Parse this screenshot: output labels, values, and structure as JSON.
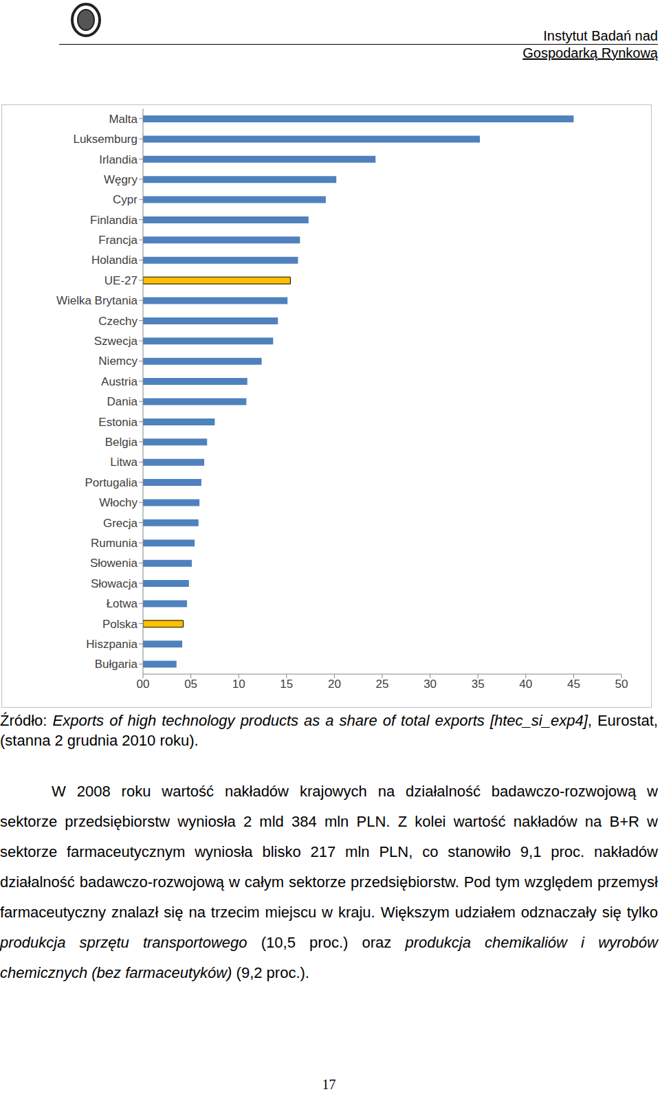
{
  "header": {
    "lines": [
      "Instytut Badań nad",
      "Gospodarką Rynkową"
    ]
  },
  "chart_data": {
    "type": "bar",
    "orientation": "horizontal",
    "categories": [
      "Malta",
      "Luksemburg",
      "Irlandia",
      "Węgry",
      "Cypr",
      "Finlandia",
      "Francja",
      "Holandia",
      "UE-27",
      "Wielka Brytania",
      "Czechy",
      "Szwecja",
      "Niemcy",
      "Austria",
      "Dania",
      "Estonia",
      "Belgia",
      "Litwa",
      "Portugalia",
      "Włochy",
      "Grecja",
      "Rumunia",
      "Słowenia",
      "Słowacja",
      "Łotwa",
      "Polska",
      "Hiszpania",
      "Bułgaria"
    ],
    "values": [
      45.0,
      35.2,
      24.3,
      20.2,
      19.1,
      17.3,
      16.4,
      16.2,
      15.4,
      15.1,
      14.1,
      13.6,
      12.4,
      10.9,
      10.8,
      7.5,
      6.7,
      6.4,
      6.1,
      5.9,
      5.8,
      5.4,
      5.1,
      4.8,
      4.6,
      4.2,
      4.1,
      3.5
    ],
    "color": "#4f81bd",
    "colors": [
      "#4f81bd",
      "#4f81bd",
      "#4f81bd",
      "#4f81bd",
      "#4f81bd",
      "#4f81bd",
      "#4f81bd",
      "#4f81bd",
      "#ffc000",
      "#4f81bd",
      "#4f81bd",
      "#4f81bd",
      "#4f81bd",
      "#4f81bd",
      "#4f81bd",
      "#4f81bd",
      "#4f81bd",
      "#4f81bd",
      "#4f81bd",
      "#4f81bd",
      "#4f81bd",
      "#4f81bd",
      "#4f81bd",
      "#4f81bd",
      "#4f81bd",
      "#ffc000",
      "#4f81bd",
      "#4f81bd"
    ],
    "xlim": [
      0,
      50
    ],
    "xticks": [
      {
        "value": 0,
        "label": "00"
      },
      {
        "value": 5,
        "label": "05"
      },
      10,
      15,
      20,
      25,
      30,
      35,
      40,
      45,
      50
    ],
    "grid": false
  },
  "source": [
    {
      "text": "Źródło: ",
      "italic": false
    },
    {
      "text": "Exports of high technology products as a share of total exports [htec_si_exp4]",
      "italic": true
    },
    {
      "text": ", Eurostat, (stanna 2 grudnia 2010 roku).",
      "italic": false
    }
  ],
  "body": [
    {
      "text": "W 2008 roku wartość nakładów krajowych na działalność badawczo-rozwojową w sektorze przedsiębiorstw wyniosła 2 mld 384 mln PLN. Z kolei wartość nakładów na B+R w sektorze farmaceutycznym wyniosła blisko 217 mln PLN, co stanowiło 9,1 proc. nakładów działalność badawczo-rozwojową w całym sektorze przedsiębiorstw. Pod tym względem przemysł farmaceutyczny znalazł się na trzecim miejscu w kraju. Większym udziałem odznaczały się tylko ",
      "italic": false
    },
    {
      "text": "produkcja sprzętu transportowego",
      "italic": true
    },
    {
      "text": " (10,5 proc.) oraz ",
      "italic": false
    },
    {
      "text": "produkcja chemikaliów i wyrobów chemicznych (bez farmaceutyków)",
      "italic": true
    },
    {
      "text": " (9,2 proc.).",
      "italic": false
    }
  ],
  "page_number": "17"
}
